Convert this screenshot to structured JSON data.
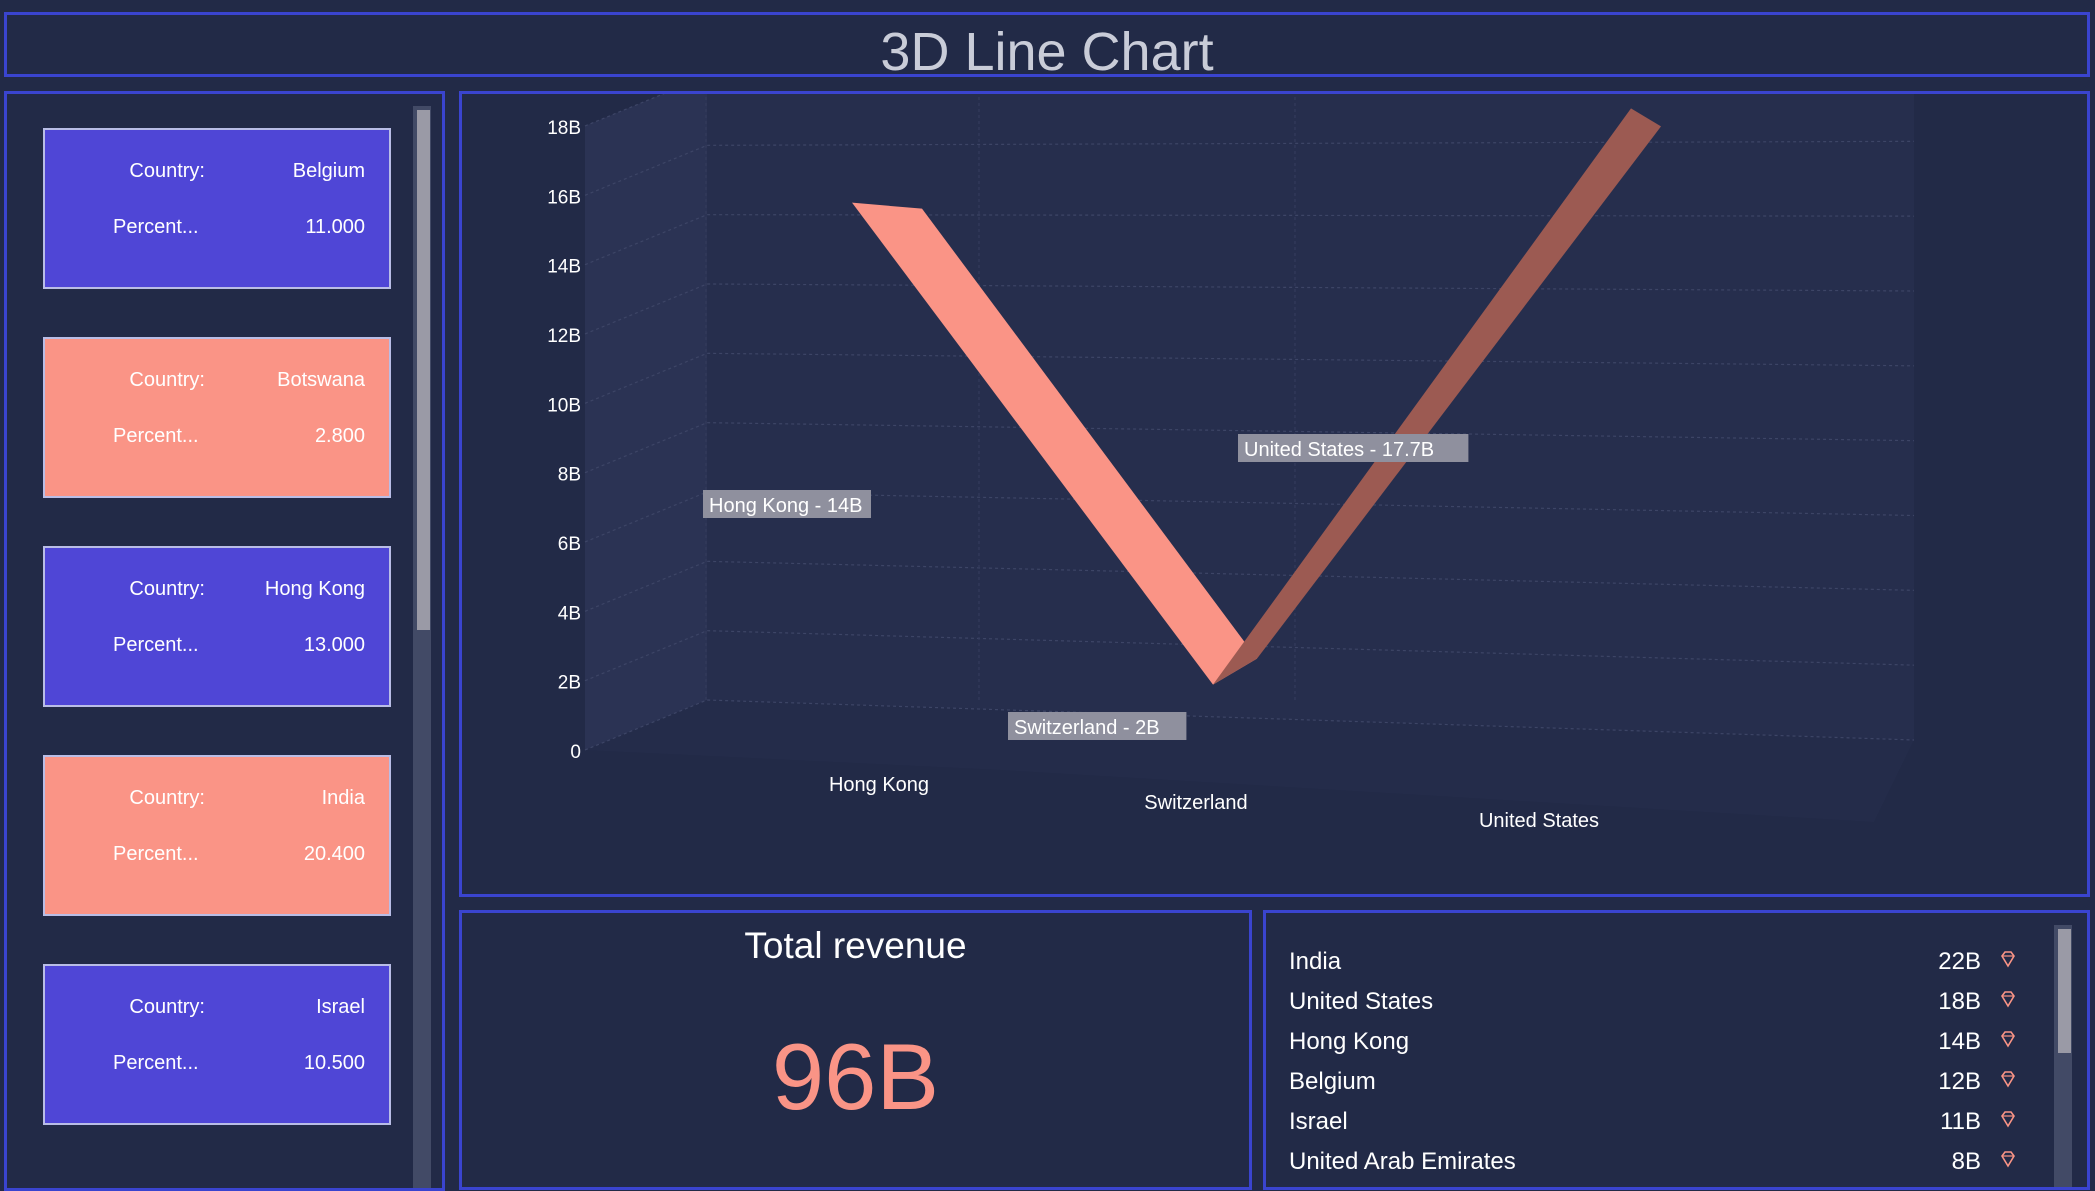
{
  "header": {
    "title": "3D Line Chart"
  },
  "cards": {
    "items": [
      {
        "country_label": "Country:",
        "country": "Belgium",
        "percent_label": "Percent...",
        "percent": "11.000",
        "color": "#4f46d6"
      },
      {
        "country_label": "Country:",
        "country": "Botswana",
        "percent_label": "Percent...",
        "percent": "2.800",
        "color": "#fa9486"
      },
      {
        "country_label": "Country:",
        "country": "Hong Kong",
        "percent_label": "Percent...",
        "percent": "13.000",
        "color": "#4f46d6"
      },
      {
        "country_label": "Country:",
        "country": "India",
        "percent_label": "Percent...",
        "percent": "20.400",
        "color": "#fa9486"
      },
      {
        "country_label": "Country:",
        "country": "Israel",
        "percent_label": "Percent...",
        "percent": "10.500",
        "color": "#4f46d6"
      }
    ]
  },
  "chart_data": {
    "type": "line",
    "title": "",
    "xlabel": "",
    "ylabel": "",
    "categories": [
      "Hong Kong",
      "Switzerland",
      "United States"
    ],
    "series": [
      {
        "values": [
          14,
          2,
          17.7
        ]
      }
    ],
    "data_labels": [
      "Hong Kong - 14B",
      "Switzerland - 2B",
      "United States - 17.7B"
    ],
    "y_ticks": [
      "0",
      "2B",
      "4B",
      "6B",
      "8B",
      "10B",
      "12B",
      "14B",
      "16B",
      "18B"
    ],
    "ylim": [
      0,
      18
    ],
    "grid": true,
    "legend": "none",
    "colors": {
      "front_ribbon": "#fa9486",
      "back_ribbon": "#9c5a52"
    }
  },
  "kpi": {
    "title": "Total revenue",
    "value": "96B"
  },
  "revenue_list": {
    "items": [
      {
        "name": "India",
        "value": "22B"
      },
      {
        "name": "United States",
        "value": "18B"
      },
      {
        "name": "Hong Kong",
        "value": "14B"
      },
      {
        "name": "Belgium",
        "value": "12B"
      },
      {
        "name": "Israel",
        "value": "11B"
      },
      {
        "name": "United Arab Emirates",
        "value": "8B"
      }
    ],
    "icon": "diamond-icon"
  }
}
